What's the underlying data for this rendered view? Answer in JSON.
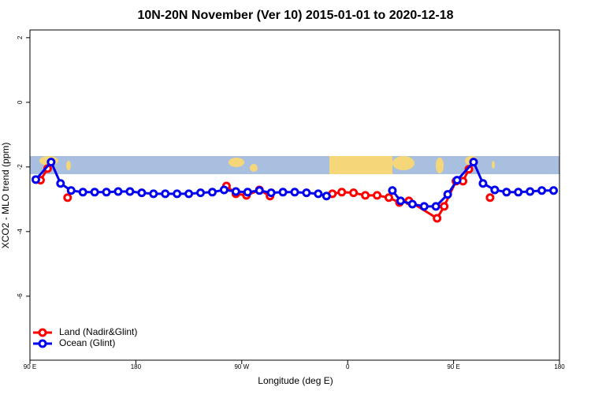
{
  "chart_data": {
    "type": "line",
    "title": "10N-20N November (Ver 10)   2015-01-01 to 2020-12-18",
    "x_label": "Longitude (deg E)",
    "y_label": "XCO2 - MLO trend (ppm)",
    "xlim": [
      90,
      540
    ],
    "xticks": [
      {
        "value": 90,
        "label": "90 E"
      },
      180,
      {
        "value": 270,
        "label": "90 W"
      },
      {
        "value": 360,
        "label": "0"
      },
      {
        "value": 450,
        "label": "90 E"
      },
      {
        "value": 540,
        "label": "180"
      }
    ],
    "ylim": [
      -7.98,
      2.24
    ],
    "yticks": [
      2,
      0,
      -2,
      -4,
      -6
    ],
    "legend": "bottom-left",
    "series": [
      {
        "name": "Land (Nadir&Glint)",
        "color": "#ff0000",
        "x": [
          99,
          105,
          113,
          122,
          200,
          257,
          265,
          274,
          285,
          294,
          320,
          347,
          355,
          365,
          375,
          385,
          395,
          404,
          412,
          436,
          442,
          452,
          458,
          463,
          472,
          481
        ],
        "values": [
          -2.41,
          -2.05,
          null,
          -2.95,
          null,
          -2.59,
          -2.83,
          -2.88,
          -2.71,
          -2.9,
          null,
          -2.83,
          -2.78,
          -2.8,
          -2.88,
          -2.88,
          -2.95,
          -3.1,
          -3.05,
          -3.59,
          -3.22,
          -2.44,
          -2.44,
          -2.07,
          null,
          -2.95
        ]
      },
      {
        "name": "Ocean (Glint)",
        "color": "#0000ee",
        "x": [
          95,
          108,
          116,
          125,
          135,
          145,
          155,
          165,
          175,
          185,
          195,
          205,
          215,
          225,
          235,
          245,
          255,
          265,
          275,
          285,
          295,
          305,
          315,
          325,
          335,
          342,
          370,
          398,
          405,
          415,
          425,
          435,
          445,
          453,
          467,
          475,
          485,
          495,
          505,
          515,
          525,
          535
        ],
        "values": [
          -2.39,
          -1.85,
          -2.51,
          -2.73,
          -2.78,
          -2.78,
          -2.78,
          -2.76,
          -2.76,
          -2.8,
          -2.83,
          -2.83,
          -2.83,
          -2.83,
          -2.8,
          -2.78,
          -2.71,
          -2.76,
          -2.78,
          -2.73,
          -2.8,
          -2.78,
          -2.78,
          -2.8,
          -2.83,
          -2.9,
          null,
          -2.73,
          -3.05,
          -3.15,
          -3.22,
          -3.22,
          -2.85,
          -2.41,
          -1.85,
          -2.51,
          -2.71,
          -2.78,
          -2.78,
          -2.76,
          -2.73,
          -2.73
        ]
      }
    ]
  }
}
